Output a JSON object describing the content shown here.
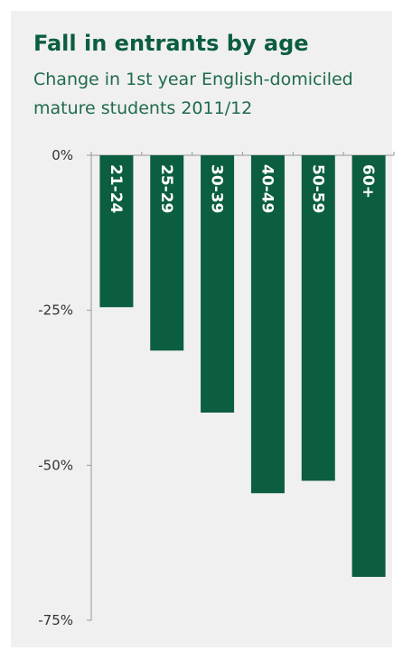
{
  "colors": {
    "background": "#f0f0f0",
    "bar": "#0b5e3f",
    "title": "#0b5e3f",
    "axis": "#999999"
  },
  "chart_data": {
    "type": "bar",
    "title": "Fall in entrants by age",
    "subtitle": "Change in 1st year English-domiciled mature students  2011/12",
    "categories": [
      "21-24",
      "25-29",
      "30-39",
      "40-49",
      "50-59",
      "60+"
    ],
    "values": [
      -24.5,
      -31.5,
      -41.5,
      -54.5,
      -52.5,
      -68
    ],
    "ylim": [
      -75,
      0
    ],
    "yticks": [
      0,
      -25,
      -50,
      -75
    ],
    "ytick_labels": [
      "0%",
      "-25%",
      "-50%",
      "-75%"
    ],
    "xlabel": "",
    "ylabel": "",
    "grid": false,
    "legend": "none",
    "category_labels_inside_bars": true
  }
}
